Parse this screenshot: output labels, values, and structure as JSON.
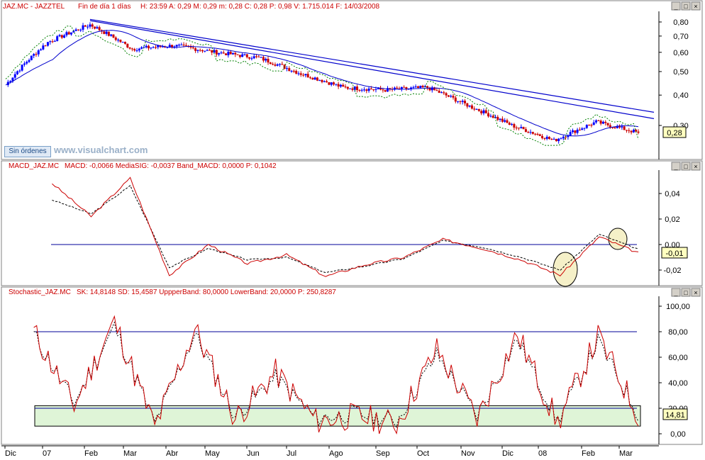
{
  "price_panel": {
    "header": {
      "symbol": "JAZ.MC - JAZZTEL",
      "period": "Fin de día 1 días",
      "fields": "H: 23:59  A: 0,29  M: 0,29  m: 0,28  C: 0,28  P: 0,98  V: 1.715.014  F: 14/03/2008"
    },
    "y_ticks": [
      "0,80",
      "0,70",
      "0,60",
      "0,50",
      "0,40",
      "0,30"
    ],
    "last_value": "0,28",
    "sin_ordenes_label": "Sin órdenes",
    "watermark": "www.visualchart.com"
  },
  "macd_panel": {
    "header": {
      "name": "MACD_JAZ.MC",
      "fields": "MACD: -0,0066  MediaSIG: -0,0037  Band_MACD: 0,0000  P: 0,1042"
    },
    "y_ticks": [
      "0,04",
      "0,02",
      "0,00",
      "-0,02"
    ],
    "last_value": "-0,01"
  },
  "stoch_panel": {
    "header": {
      "name": "Stochastic_JAZ.MC",
      "fields": "SK: 14,8148  SD: 15,4587  UppperBand: 80,0000  LowerBand: 20,0000  P: 250,8287"
    },
    "y_ticks": [
      "100,00",
      "80,00",
      "60,00",
      "40,00",
      "20,00",
      "0,00"
    ],
    "last_value": "14,81"
  },
  "x_axis": {
    "labels": [
      "Dic",
      "07",
      "Feb",
      "Mar",
      "Abr",
      "May",
      "Jun",
      "Jul",
      "Ago",
      "Sep",
      "Oct",
      "Nov",
      "Dic",
      "08",
      "Feb",
      "Mar"
    ]
  },
  "window_controls": [
    "_",
    "□",
    "×"
  ],
  "colors": {
    "header_text": "#cc0000",
    "price_up": "#0000ff",
    "price_down": "#cc0000",
    "ma_line": "#0000cc",
    "trend_line": "#0000cc",
    "parabolic_sar": "#008000",
    "macd_line": "#cc0000",
    "signal_line": "#000000",
    "band_line": "#000099",
    "stoch_band_fill": "#dff5d7",
    "ellipse_fill": "#f5f0c8"
  },
  "chart_data": [
    {
      "type": "candlestick",
      "title": "JAZ.MC - JAZZTEL",
      "ylim": [
        0.22,
        0.87
      ],
      "y_scale": "log",
      "grid": false,
      "x": [
        "2006-12",
        "2007-01",
        "2007-02",
        "2007-03",
        "2007-04",
        "2007-05",
        "2007-06",
        "2007-07",
        "2007-08",
        "2007-09",
        "2007-10",
        "2007-11",
        "2007-12",
        "2008-01",
        "2008-02",
        "2008-03"
      ],
      "close_approx": [
        0.44,
        0.66,
        0.78,
        0.62,
        0.64,
        0.6,
        0.57,
        0.49,
        0.43,
        0.42,
        0.43,
        0.36,
        0.3,
        0.26,
        0.31,
        0.28
      ],
      "trendlines": [
        {
          "from": [
            "2007-02",
            0.82
          ],
          "to": [
            "2008-03",
            0.34
          ]
        },
        {
          "from": [
            "2007-02",
            0.81
          ],
          "to": [
            "2008-03",
            0.32
          ]
        }
      ]
    },
    {
      "type": "line",
      "title": "MACD_JAZ.MC",
      "ylim": [
        -0.03,
        0.05
      ],
      "series": [
        {
          "name": "MACD",
          "values": [
            0.048,
            0.022,
            0.052,
            -0.024,
            0.0,
            -0.015,
            -0.008,
            -0.025,
            -0.016,
            -0.01,
            0.004,
            -0.003,
            -0.012,
            -0.024,
            0.006,
            -0.0066
          ]
        },
        {
          "name": "MediaSIG",
          "values": [
            0.035,
            0.024,
            0.046,
            -0.018,
            -0.003,
            -0.012,
            -0.01,
            -0.022,
            -0.017,
            -0.011,
            0.003,
            -0.002,
            -0.01,
            -0.02,
            0.008,
            -0.0037
          ]
        }
      ],
      "band": 0.0
    },
    {
      "type": "line",
      "title": "Stochastic_JAZ.MC",
      "ylim": [
        -5,
        105
      ],
      "series": [
        {
          "name": "SK",
          "values": [
            80,
            22,
            88,
            5,
            82,
            12,
            48,
            10,
            14,
            8,
            66,
            12,
            78,
            8,
            76,
            14.8148
          ]
        },
        {
          "name": "SD",
          "values": [
            78,
            24,
            84,
            8,
            78,
            14,
            44,
            12,
            16,
            10,
            62,
            14,
            74,
            10,
            72,
            15.4587
          ]
        }
      ],
      "bands": {
        "upper": 80,
        "lower": 20
      }
    }
  ]
}
